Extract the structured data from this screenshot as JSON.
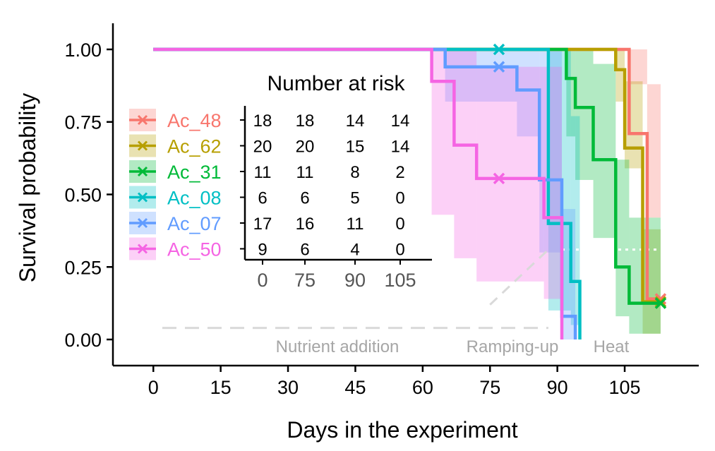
{
  "chart_data": {
    "type": "line",
    "xlabel": "Days in the experiment",
    "ylabel": "Survival probability",
    "xlim": [
      -9,
      121.5
    ],
    "ylim": [
      -0.09,
      1.09
    ],
    "x_ticks": [
      0,
      15,
      30,
      45,
      60,
      75,
      90,
      105
    ],
    "y_ticks": [
      0,
      0.25,
      0.5,
      0.75,
      1
    ],
    "y_tick_labels": [
      "0.00",
      "0.25",
      "0.50",
      "0.75",
      "1.00"
    ],
    "grid": false,
    "legend_position": "left",
    "series": [
      {
        "name": "Ac_48",
        "color": "#F8766D",
        "steps": [
          [
            0,
            1.0
          ],
          [
            106,
            1.0
          ],
          [
            106,
            0.71
          ],
          [
            110,
            0.71
          ],
          [
            110,
            0.14
          ],
          [
            113,
            0.14
          ]
        ],
        "ci": [
          [
            0,
            1.0,
            1.0
          ],
          [
            106,
            0.88,
            1.0
          ],
          [
            110,
            0.42,
            0.88
          ],
          [
            113,
            0.02,
            0.88
          ]
        ],
        "censor": [
          [
            113,
            0.14
          ]
        ]
      },
      {
        "name": "Ac_62",
        "color": "#B79F00",
        "steps": [
          [
            0,
            1.0
          ],
          [
            103,
            1.0
          ],
          [
            103,
            0.93
          ],
          [
            105,
            0.93
          ],
          [
            105,
            0.66
          ],
          [
            109,
            0.66
          ],
          [
            109,
            0.13
          ],
          [
            113,
            0.13
          ]
        ],
        "ci": [
          [
            0,
            1.0,
            1.0
          ],
          [
            103,
            0.82,
            1.0
          ],
          [
            105,
            0.59,
            0.89
          ],
          [
            109,
            0.02,
            0.38
          ],
          [
            113,
            0.02,
            0.38
          ]
        ],
        "censor": [
          [
            113,
            0.13
          ]
        ]
      },
      {
        "name": "Ac_31",
        "color": "#00BA38",
        "steps": [
          [
            0,
            1.0
          ],
          [
            92,
            1.0
          ],
          [
            92,
            0.9
          ],
          [
            94,
            0.9
          ],
          [
            94,
            0.8
          ],
          [
            98,
            0.8
          ],
          [
            98,
            0.62
          ],
          [
            103,
            0.62
          ],
          [
            103,
            0.25
          ],
          [
            106,
            0.25
          ],
          [
            106,
            0.125
          ],
          [
            113,
            0.125
          ]
        ],
        "ci": [
          [
            0,
            1.0,
            1.0
          ],
          [
            92,
            0.7,
            1.0
          ],
          [
            94,
            0.55,
            1.0
          ],
          [
            98,
            0.35,
            0.95
          ],
          [
            103,
            0.08,
            0.62
          ],
          [
            106,
            0.02,
            0.42
          ],
          [
            113,
            0.02,
            0.42
          ]
        ],
        "censor": [
          [
            113,
            0.125
          ]
        ]
      },
      {
        "name": "Ac_08",
        "color": "#00BFC4",
        "steps": [
          [
            0,
            1.0
          ],
          [
            88,
            1.0
          ],
          [
            88,
            0.4
          ],
          [
            93,
            0.4
          ],
          [
            93,
            0.2
          ],
          [
            95,
            0.2
          ],
          [
            95,
            0.0
          ]
        ],
        "ci": [
          [
            0,
            1.0,
            1.0
          ],
          [
            88,
            0.1,
            1.0
          ],
          [
            93,
            0.05,
            0.77
          ],
          [
            95,
            0.0,
            0.77
          ]
        ],
        "censor": [
          [
            77,
            1.0
          ]
        ]
      },
      {
        "name": "Ac_07",
        "color": "#619CFF",
        "steps": [
          [
            0,
            1.0
          ],
          [
            65,
            1.0
          ],
          [
            65,
            0.94
          ],
          [
            81,
            0.94
          ],
          [
            81,
            0.86
          ],
          [
            86,
            0.86
          ],
          [
            86,
            0.55
          ],
          [
            91,
            0.55
          ],
          [
            91,
            0.08
          ],
          [
            94,
            0.08
          ],
          [
            94,
            0.0
          ]
        ],
        "ci": [
          [
            0,
            1.0,
            1.0
          ],
          [
            65,
            0.82,
            1.0
          ],
          [
            81,
            0.7,
            1.0
          ],
          [
            86,
            0.3,
            1.0
          ],
          [
            91,
            0.0,
            0.45
          ],
          [
            94,
            0.0,
            0.45
          ]
        ],
        "censor": [
          [
            77,
            0.94
          ]
        ]
      },
      {
        "name": "Ac_50",
        "color": "#F564E3",
        "steps": [
          [
            0,
            1.0
          ],
          [
            62,
            1.0
          ],
          [
            62,
            0.89
          ],
          [
            67,
            0.89
          ],
          [
            67,
            0.67
          ],
          [
            72,
            0.67
          ],
          [
            72,
            0.555
          ],
          [
            87,
            0.555
          ],
          [
            87,
            0.42
          ],
          [
            91,
            0.42
          ],
          [
            91,
            0.0
          ]
        ],
        "ci": [
          [
            0,
            1.0,
            1.0
          ],
          [
            62,
            0.43,
            1.0
          ],
          [
            67,
            0.28,
            1.0
          ],
          [
            72,
            0.2,
            0.94
          ],
          [
            87,
            0.14,
            0.94
          ],
          [
            91,
            0.0,
            0.94
          ]
        ],
        "censor": [
          [
            77,
            0.555
          ]
        ]
      }
    ],
    "risk_table": {
      "title": "Number at risk",
      "time_points": [
        "0",
        "75",
        "90",
        "105"
      ],
      "rows": [
        {
          "name": "Ac_48",
          "counts": [
            "18",
            "18",
            "14",
            "14"
          ]
        },
        {
          "name": "Ac_62",
          "counts": [
            "20",
            "20",
            "15",
            "14"
          ]
        },
        {
          "name": "Ac_31",
          "counts": [
            "11",
            "11",
            "8",
            "2"
          ]
        },
        {
          "name": "Ac_08",
          "counts": [
            "6",
            "6",
            "5",
            "0"
          ]
        },
        {
          "name": "Ac_07",
          "counts": [
            "17",
            "16",
            "11",
            "0"
          ]
        },
        {
          "name": "Ac_50",
          "counts": [
            "9",
            "6",
            "4",
            "0"
          ]
        }
      ]
    },
    "phases": [
      {
        "label": "Nutrient addition",
        "x_center": 41,
        "x_from": 2,
        "x_to": 88,
        "y": 0.04
      },
      {
        "label": "Ramping-up",
        "x_center": 80,
        "x_from": 75,
        "x_to": 88,
        "y_from": 0.12,
        "y_to": 0.31
      },
      {
        "label": "Heat",
        "x_center": 102,
        "x_from": 91,
        "x_to": 113,
        "y": 0.31
      }
    ]
  }
}
